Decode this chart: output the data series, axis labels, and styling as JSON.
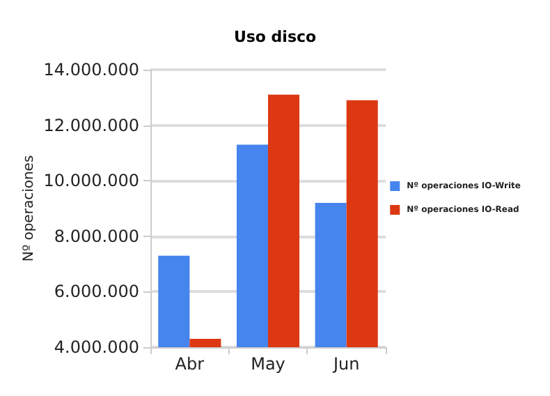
{
  "chart_data": {
    "type": "bar",
    "title": "Uso disco",
    "ylabel": "Nº operaciones",
    "categories": [
      "Abr",
      "May",
      "Jun"
    ],
    "series": [
      {
        "name": "Nº operaciones IO-Write",
        "color": "#4684ee",
        "values": [
          7300000,
          11300000,
          9200000
        ]
      },
      {
        "name": "Nº operaciones IO-Read",
        "color": "#dc3912",
        "values": [
          4300000,
          13100000,
          12900000
        ]
      }
    ],
    "ylim": [
      4000000,
      14000000
    ],
    "yticks": [
      {
        "value": 4000000,
        "label": "4.000.000"
      },
      {
        "value": 6000000,
        "label": "6.000.000"
      },
      {
        "value": 8000000,
        "label": "8.000.000"
      },
      {
        "value": 10000000,
        "label": "10.000.000"
      },
      {
        "value": 12000000,
        "label": "12.000.000"
      },
      {
        "value": 14000000,
        "label": "14.000.000"
      }
    ],
    "grid": "y",
    "legend": "right"
  }
}
